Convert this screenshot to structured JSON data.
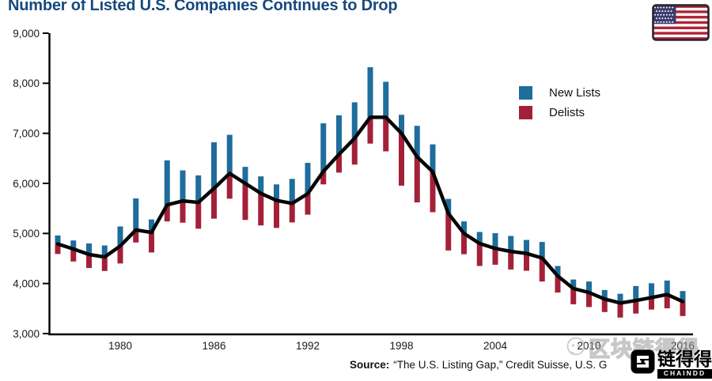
{
  "title": "Number of Listed U.S. Companies Continues to Drop",
  "legend": {
    "new_lists": "New Lists",
    "delists": "Delists"
  },
  "source": {
    "label": "Source:",
    "text": "“The U.S. Listing Gap,” Credit Suisse, U.S. G"
  },
  "watermark": {
    "outline_text": "区块链得得",
    "logo_text": "链得得",
    "logo_badge": "CHAINDD"
  },
  "colors": {
    "title": "#17497e",
    "new_lists": "#1e6d9c",
    "delists": "#a32138",
    "line": "#050505",
    "axis": "#000000",
    "tick_text": "#1a1a1a",
    "watermark_gray": "#9b9b9b",
    "flag_red": "#b22234",
    "flag_blue": "#3c3b6e"
  },
  "chart_data": {
    "type": "line",
    "title": "Number of Listed U.S. Companies Continues to Drop",
    "x": [
      1976,
      1977,
      1978,
      1979,
      1980,
      1981,
      1982,
      1983,
      1984,
      1985,
      1986,
      1987,
      1988,
      1989,
      1990,
      1991,
      1992,
      1993,
      1994,
      1995,
      1996,
      1997,
      1998,
      1999,
      2000,
      2001,
      2002,
      2003,
      2004,
      2005,
      2006,
      2007,
      2008,
      2009,
      2010,
      2011,
      2012,
      2013,
      2014,
      2015,
      2016
    ],
    "series": [
      {
        "name": "Listed U.S. Companies",
        "type": "line",
        "values": [
          4790,
          4690,
          4580,
          4530,
          4750,
          5070,
          5020,
          5570,
          5650,
          5620,
          5900,
          6200,
          6000,
          5800,
          5660,
          5600,
          5795,
          6240,
          6580,
          6900,
          7320,
          7320,
          7000,
          6530,
          6230,
          5400,
          5000,
          4800,
          4700,
          4640,
          4600,
          4510,
          4150,
          3900,
          3820,
          3690,
          3610,
          3660,
          3720,
          3780,
          3640
        ]
      },
      {
        "name": "New Lists",
        "type": "bar",
        "anchor": "above-line",
        "values": [
          170,
          170,
          220,
          230,
          390,
          630,
          260,
          890,
          610,
          540,
          920,
          770,
          330,
          340,
          320,
          490,
          615,
          960,
          780,
          720,
          1000,
          710,
          370,
          620,
          550,
          290,
          240,
          230,
          305,
          310,
          270,
          320,
          200,
          180,
          220,
          180,
          185,
          290,
          285,
          280,
          210
        ]
      },
      {
        "name": "Delists",
        "type": "bar",
        "anchor": "below-line",
        "values": [
          200,
          250,
          270,
          280,
          350,
          250,
          400,
          330,
          435,
          525,
          605,
          505,
          730,
          640,
          550,
          380,
          420,
          260,
          365,
          525,
          525,
          680,
          1045,
          910,
          805,
          740,
          415,
          450,
          325,
          360,
          345,
          470,
          330,
          315,
          290,
          260,
          290,
          260,
          240,
          275,
          290
        ]
      }
    ],
    "ylim": [
      3000,
      9000
    ],
    "yticks": [
      3000,
      4000,
      5000,
      6000,
      7000,
      8000,
      9000
    ],
    "ytick_labels": [
      "3,000",
      "4,000",
      "5,000",
      "6,000",
      "7,000",
      "8,000",
      "9,000"
    ],
    "xticks": [
      1980,
      1986,
      1992,
      1998,
      2004,
      2010,
      2016
    ],
    "grid": false,
    "legend_entries": [
      "New Lists",
      "Delists"
    ],
    "legend_position": "upper-right-inside"
  }
}
